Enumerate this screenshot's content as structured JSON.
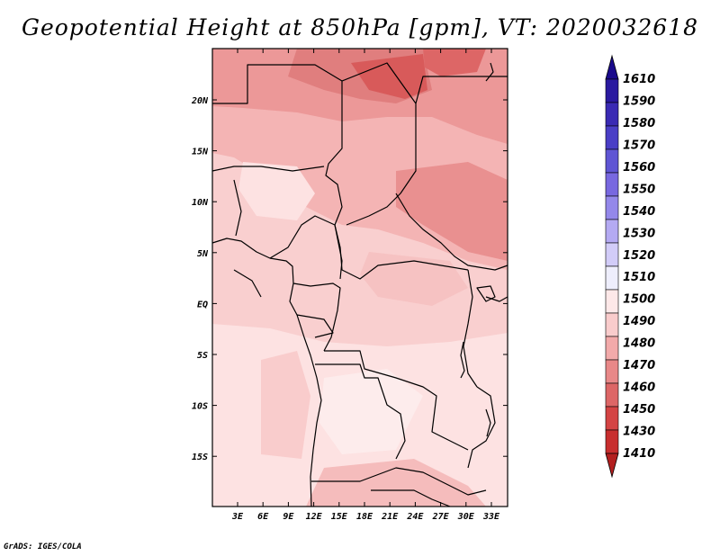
{
  "title": "Geopotential Height at 850hPa [gpm], VT: 2020032618",
  "credit": "GrADS: IGES/COLA",
  "map": {
    "lat_labels": [
      "20N",
      "15N",
      "10N",
      "5N",
      "EQ",
      "5S",
      "10S",
      "15S"
    ],
    "lon_labels": [
      "3E",
      "6E",
      "9E",
      "12E",
      "15E",
      "18E",
      "21E",
      "24E",
      "27E",
      "30E",
      "33E"
    ]
  },
  "colorbar": {
    "levels": [
      "1610",
      "1590",
      "1580",
      "1570",
      "1560",
      "1550",
      "1540",
      "1530",
      "1520",
      "1510",
      "1500",
      "1490",
      "1480",
      "1470",
      "1460",
      "1450",
      "1430",
      "1410"
    ],
    "colors": [
      "#1a0a8c",
      "#2a1aa0",
      "#3a2ab4",
      "#4a3ec6",
      "#5f55d4",
      "#7868e0",
      "#9488ea",
      "#b4aaf2",
      "#d2ccf8",
      "#eeeefc",
      "#fde8e8",
      "#f9cccc",
      "#f2aaaa",
      "#e88888",
      "#dd6666",
      "#d44444",
      "#c82e2e",
      "#b31f1f"
    ]
  }
}
